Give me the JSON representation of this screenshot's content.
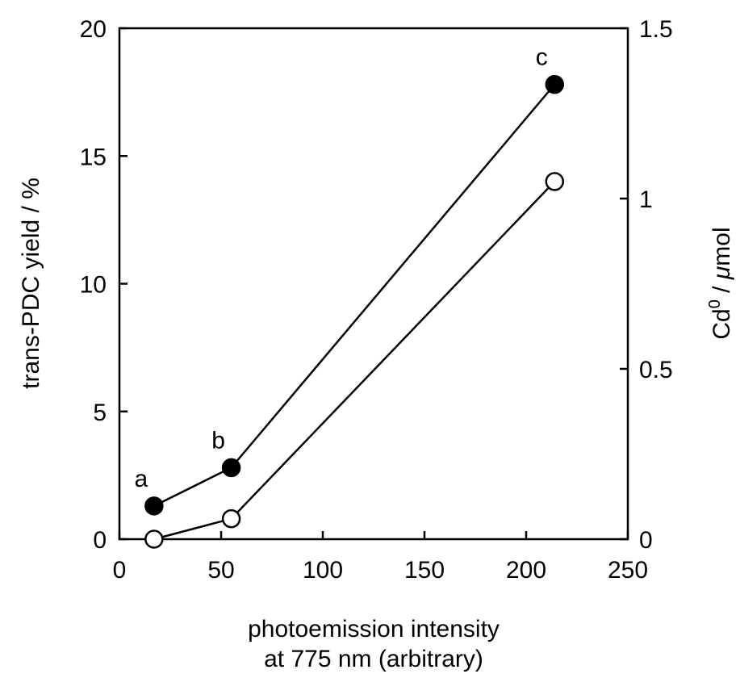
{
  "chart_data": {
    "type": "line",
    "title": "",
    "xlabel_line1": "photoemission intensity",
    "xlabel_line2": "at 775 nm (arbitrary)",
    "ylabel": "trans-PDC yield / %",
    "y2label_main": "Cd",
    "y2label_sup": "0",
    "y2label_unit": " / ",
    "y2label_mu": "μ",
    "y2label_rest": "mol",
    "xlim": [
      0,
      250
    ],
    "ylim": [
      0,
      20
    ],
    "y2lim": [
      0,
      1.5
    ],
    "xticks": [
      0,
      50,
      100,
      150,
      200,
      250
    ],
    "xtick_labels": [
      "0",
      "50",
      "100",
      "150",
      "200",
      "250"
    ],
    "yticks": [
      0,
      5,
      10,
      15,
      20
    ],
    "ytick_labels": [
      "0",
      "5",
      "10",
      "15",
      "20"
    ],
    "y2ticks": [
      0,
      0.5,
      1,
      1.5
    ],
    "y2tick_labels": [
      "0",
      "0.5",
      "1",
      "1.5"
    ],
    "grid": false,
    "series": [
      {
        "axis": "left",
        "marker": "filled-circle",
        "x": [
          17,
          55,
          214
        ],
        "y": [
          1.3,
          2.8,
          17.8
        ]
      },
      {
        "axis": "right",
        "marker": "open-circle",
        "x": [
          17,
          55,
          214
        ],
        "y": [
          0,
          0.06,
          1.05
        ]
      }
    ],
    "annotations": [
      {
        "text": "a",
        "x": 17,
        "y": 1.3
      },
      {
        "text": "b",
        "x": 55,
        "y": 2.8
      },
      {
        "text": "c",
        "x": 214,
        "y": 17.8
      }
    ]
  }
}
